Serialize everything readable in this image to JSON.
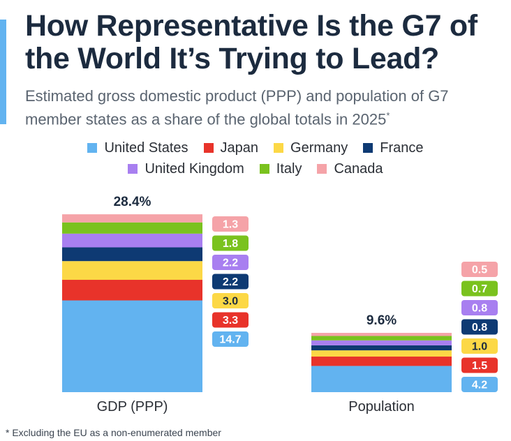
{
  "header": {
    "title": "How Representative Is the G7 of the World It’s Trying to Lead?",
    "subtitle": "Estimated gross domestic product (PPP) and population of G7 member states as a share of the global totals in 2025",
    "subtitle_marker": "*"
  },
  "footnote": "* Excluding the EU as a non-enumerated member",
  "chart_data": {
    "type": "stacked-bar",
    "unit": "% of global total",
    "categories": [
      "GDP (PPP)",
      "Population"
    ],
    "totals": [
      28.4,
      9.6
    ],
    "total_labels": [
      "28.4%",
      "9.6%"
    ],
    "series": [
      {
        "name": "United States",
        "color": "#62b3f0",
        "values": [
          14.7,
          4.2
        ]
      },
      {
        "name": "Japan",
        "color": "#e8332a",
        "values": [
          3.3,
          1.5
        ]
      },
      {
        "name": "Germany",
        "color": "#fcd846",
        "values": [
          3.0,
          1.0
        ]
      },
      {
        "name": "France",
        "color": "#0e3a73",
        "values": [
          2.2,
          0.8
        ]
      },
      {
        "name": "United Kingdom",
        "color": "#a87ff0",
        "values": [
          2.2,
          0.8
        ]
      },
      {
        "name": "Italy",
        "color": "#7ac21e",
        "values": [
          1.8,
          0.7
        ]
      },
      {
        "name": "Canada",
        "color": "#f5a3a8",
        "values": [
          1.3,
          0.5
        ]
      }
    ],
    "value_labels": [
      [
        "14.7",
        "3.3",
        "3.0",
        "2.2",
        "2.2",
        "1.8",
        "1.3"
      ],
      [
        "4.2",
        "1.5",
        "1.0",
        "0.8",
        "0.8",
        "0.7",
        "0.5"
      ]
    ],
    "legend_position": "top"
  }
}
